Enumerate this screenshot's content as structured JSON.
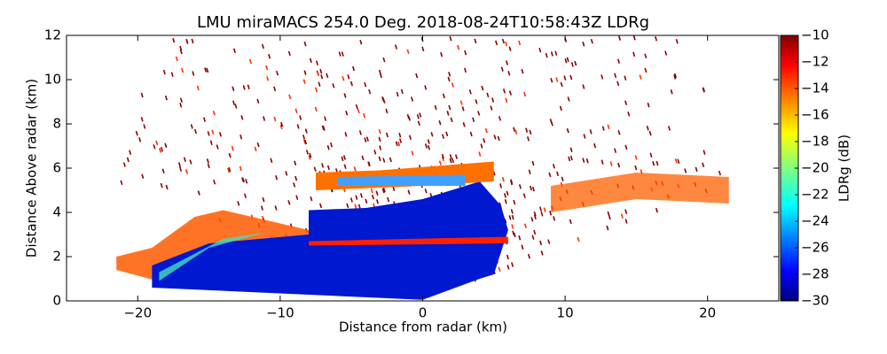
{
  "chart_data": {
    "type": "heatmap",
    "title": "LMU miraMACS 254.0 Deg. 2018-08-24T10:58:43Z  LDRg",
    "xlabel": "Distance from radar (km)",
    "ylabel": "Distance Above radar  (km)",
    "xlim": [
      -25,
      25
    ],
    "ylim": [
      0,
      12
    ],
    "xticks": [
      {
        "value": -20,
        "label": "−20"
      },
      {
        "value": -10,
        "label": "−10"
      },
      0,
      10,
      20
    ],
    "yticks": [
      0,
      2,
      4,
      6,
      8,
      10,
      12
    ],
    "colorbar": {
      "label": "LDRg (dB)",
      "lim": [
        -30,
        -10
      ],
      "ticks": [
        {
          "value": -30,
          "label": "−30"
        },
        {
          "value": -28,
          "label": "−28"
        },
        {
          "value": -26,
          "label": "−26"
        },
        {
          "value": -24,
          "label": "−24"
        },
        {
          "value": -22,
          "label": "−22"
        },
        {
          "value": -20,
          "label": "−20"
        },
        {
          "value": -18,
          "label": "−18"
        },
        {
          "value": -16,
          "label": "−16"
        },
        {
          "value": -14,
          "label": "−14"
        },
        {
          "value": -12,
          "label": "−12"
        },
        {
          "value": -10,
          "label": "−10"
        }
      ],
      "colormap": "jet"
    }
  }
}
